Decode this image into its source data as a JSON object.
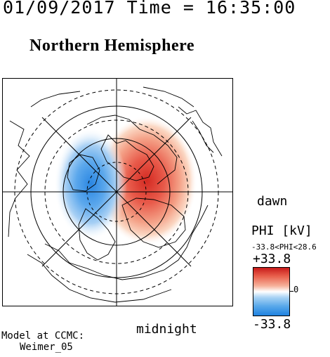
{
  "header": {
    "datetime_line": "01/09/2017 Time = 16:35:00"
  },
  "plot": {
    "title": "Northern Hemisphere"
  },
  "orientation": {
    "dawn": "dawn",
    "midnight": "midnight"
  },
  "colorbar": {
    "title": "PHI [kV]",
    "range": "-33.8<PHI<28.6",
    "max_label": "+33.8",
    "min_label": "-33.8",
    "zero_label": "0",
    "max_value": 33.8,
    "min_value": -33.8,
    "colors": {
      "positive": "#c81a1a",
      "negative": "#1f82e0",
      "zero": "#ffffff"
    }
  },
  "footer": {
    "model_line1": "Model at CCMC:",
    "model_line2": "Weimer_05"
  }
}
